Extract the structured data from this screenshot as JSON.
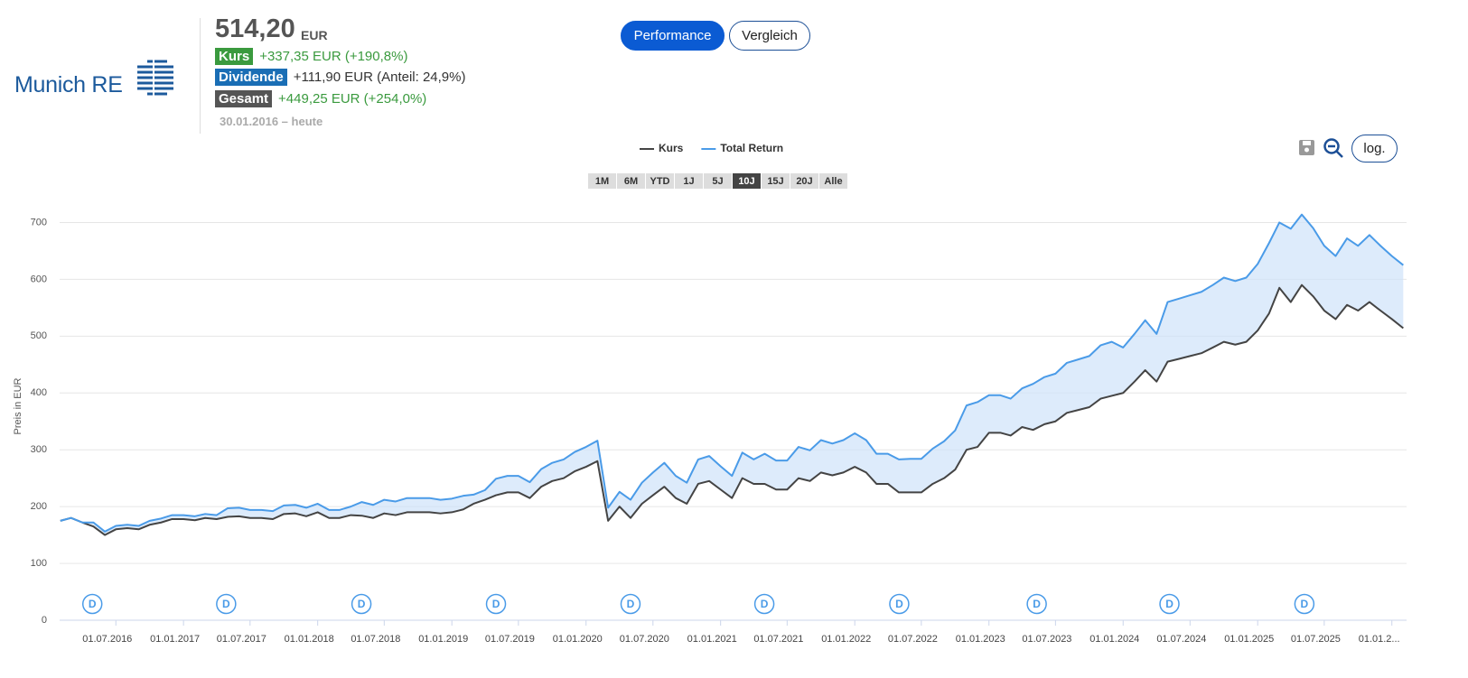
{
  "header": {
    "logo": "Munich RE",
    "price": "514,20",
    "currency": "EUR",
    "stats": [
      {
        "label": "Kurs",
        "value": "+337,35 EUR (+190,8%)",
        "label_color": "#3a9a3e",
        "value_color": "#3a9a3e"
      },
      {
        "label": "Dividende",
        "value": "+111,90 EUR (Anteil: 24,9%)",
        "label_color": "#1a6eb5",
        "value_color": "#333333"
      },
      {
        "label": "Gesamt",
        "value": "+449,25 EUR (+254,0%)",
        "label_color": "#555555",
        "value_color": "#3a9a3e"
      }
    ],
    "period": "30.01.2016 – heute"
  },
  "tabs": {
    "items": [
      "Performance",
      "Vergleich"
    ],
    "active": 0
  },
  "range_buttons": {
    "items": [
      "1M",
      "6M",
      "YTD",
      "1J",
      "5J",
      "10J",
      "15J",
      "20J",
      "Alle"
    ],
    "active": 5
  },
  "log_button": "log.",
  "chart_data": {
    "type": "line",
    "y_label": "Preis in EUR",
    "x": [
      "01.02.2016",
      "01.03.2016",
      "01.04.2016",
      "01.05.2016",
      "01.06.2016",
      "01.07.2016",
      "01.08.2016",
      "01.09.2016",
      "01.10.2016",
      "01.11.2016",
      "01.12.2016",
      "01.01.2017",
      "01.02.2017",
      "01.03.2017",
      "01.04.2017",
      "01.05.2017",
      "01.06.2017",
      "01.07.2017",
      "01.08.2017",
      "01.09.2017",
      "01.10.2017",
      "01.11.2017",
      "01.12.2017",
      "01.01.2018",
      "01.02.2018",
      "01.03.2018",
      "01.04.2018",
      "01.05.2018",
      "01.06.2018",
      "01.07.2018",
      "01.08.2018",
      "01.09.2018",
      "01.10.2018",
      "01.11.2018",
      "01.12.2018",
      "01.01.2019",
      "01.02.2019",
      "01.03.2019",
      "01.04.2019",
      "01.05.2019",
      "01.06.2019",
      "01.07.2019",
      "01.08.2019",
      "01.09.2019",
      "01.10.2019",
      "01.11.2019",
      "01.12.2019",
      "01.01.2020",
      "01.02.2020",
      "01.03.2020",
      "01.04.2020",
      "01.05.2020",
      "01.06.2020",
      "01.07.2020",
      "01.08.2020",
      "01.09.2020",
      "01.10.2020",
      "01.11.2020",
      "01.12.2020",
      "01.01.2021",
      "01.02.2021",
      "01.03.2021",
      "01.04.2021",
      "01.05.2021",
      "01.06.2021",
      "01.07.2021",
      "01.08.2021",
      "01.09.2021",
      "01.10.2021",
      "01.11.2021",
      "01.12.2021",
      "01.01.2022",
      "01.02.2022",
      "01.03.2022",
      "01.04.2022",
      "01.05.2022",
      "01.06.2022",
      "01.07.2022",
      "01.08.2022",
      "01.09.2022",
      "01.10.2022",
      "01.11.2022",
      "01.12.2022",
      "01.01.2023",
      "01.02.2023",
      "01.03.2023",
      "01.04.2023",
      "01.05.2023",
      "01.06.2023",
      "01.07.2023",
      "01.08.2023",
      "01.09.2023",
      "01.10.2023",
      "01.11.2023",
      "01.12.2023",
      "01.01.2024",
      "01.02.2024",
      "01.03.2024",
      "01.04.2024",
      "01.05.2024",
      "01.06.2024",
      "01.07.2024",
      "01.08.2024",
      "01.09.2024",
      "01.10.2024",
      "01.11.2024",
      "01.12.2024",
      "01.01.2025",
      "01.02.2025",
      "01.03.2025",
      "01.04.2025",
      "01.05.2025",
      "01.06.2025",
      "01.07.2025",
      "01.08.2025",
      "01.09.2025",
      "01.10.2025",
      "01.11.2025",
      "01.12.2025",
      "01.01.2026",
      "01.02.2026"
    ],
    "series": [
      {
        "name": "Kurs",
        "color": "#444444",
        "values": [
          175,
          180,
          172,
          165,
          150,
          160,
          162,
          160,
          168,
          172,
          178,
          178,
          176,
          180,
          178,
          182,
          183,
          180,
          180,
          178,
          187,
          188,
          183,
          190,
          180,
          180,
          185,
          184,
          180,
          188,
          185,
          190,
          190,
          190,
          188,
          190,
          195,
          205,
          212,
          220,
          225,
          225,
          215,
          235,
          245,
          250,
          262,
          270,
          280,
          175,
          200,
          180,
          205,
          220,
          235,
          215,
          205,
          240,
          245,
          230,
          215,
          250,
          240,
          240,
          230,
          230,
          250,
          245,
          260,
          255,
          260,
          270,
          260,
          240,
          240,
          225,
          225,
          225,
          240,
          250,
          265,
          300,
          305,
          330,
          330,
          325,
          340,
          335,
          345,
          350,
          365,
          370,
          375,
          390,
          395,
          400,
          420,
          440,
          420,
          455,
          460,
          465,
          470,
          480,
          490,
          485,
          490,
          510,
          540,
          585,
          560,
          590,
          570,
          545,
          530,
          555,
          545,
          560,
          545,
          530,
          514
        ]
      },
      {
        "name": "Total Return",
        "color": "#4a9be8",
        "values": [
          175,
          180,
          172,
          172,
          156,
          166,
          168,
          166,
          175,
          179,
          185,
          185,
          183,
          187,
          185,
          197,
          198,
          194,
          194,
          192,
          202,
          203,
          198,
          205,
          194,
          194,
          200,
          208,
          203,
          212,
          209,
          215,
          215,
          215,
          212,
          214,
          219,
          221,
          229,
          249,
          254,
          254,
          243,
          266,
          277,
          283,
          296,
          305,
          316,
          198,
          226,
          212,
          242,
          260,
          277,
          254,
          242,
          283,
          289,
          271,
          254,
          295,
          283,
          293,
          281,
          281,
          305,
          299,
          317,
          311,
          317,
          329,
          317,
          293,
          293,
          283,
          284,
          284,
          302,
          315,
          334,
          378,
          384,
          396,
          396,
          390,
          408,
          416,
          428,
          434,
          453,
          459,
          465,
          484,
          490,
          480,
          504,
          528,
          504,
          560,
          566,
          572,
          578,
          590,
          603,
          597,
          603,
          627,
          664,
          700,
          689,
          714,
          690,
          659,
          641,
          672,
          659,
          678,
          659,
          641,
          625
        ]
      }
    ],
    "fill_between": true,
    "fill_color": "#cfe3fa",
    "xlim": [
      "30.01.2016",
      "10.02.2026"
    ],
    "xticks": [
      "01.07.2016",
      "01.01.2017",
      "01.07.2017",
      "01.01.2018",
      "01.07.2018",
      "01.01.2019",
      "01.07.2019",
      "01.01.2020",
      "01.07.2020",
      "01.01.2021",
      "01.07.2021",
      "01.01.2022",
      "01.07.2022",
      "01.01.2023",
      "01.07.2023",
      "01.01.2024",
      "01.07.2024",
      "01.01.2025",
      "01.07.2025",
      {
        "value": "01.01.2026",
        "label": "01.01.2..."
      }
    ],
    "ylim": [
      0,
      750
    ],
    "yticks": [
      0,
      100,
      200,
      300,
      400,
      500,
      600,
      700
    ],
    "grid": true,
    "legend": "top",
    "dividend_markers": {
      "label": "D",
      "color": "#4a9be8",
      "x": [
        "28.04.2016",
        "27.04.2017",
        "30.04.2018",
        "01.05.2019",
        "01.05.2020",
        "30.04.2021",
        "02.05.2022",
        "11.05.2023",
        "06.05.2024",
        "08.05.2025"
      ]
    }
  }
}
